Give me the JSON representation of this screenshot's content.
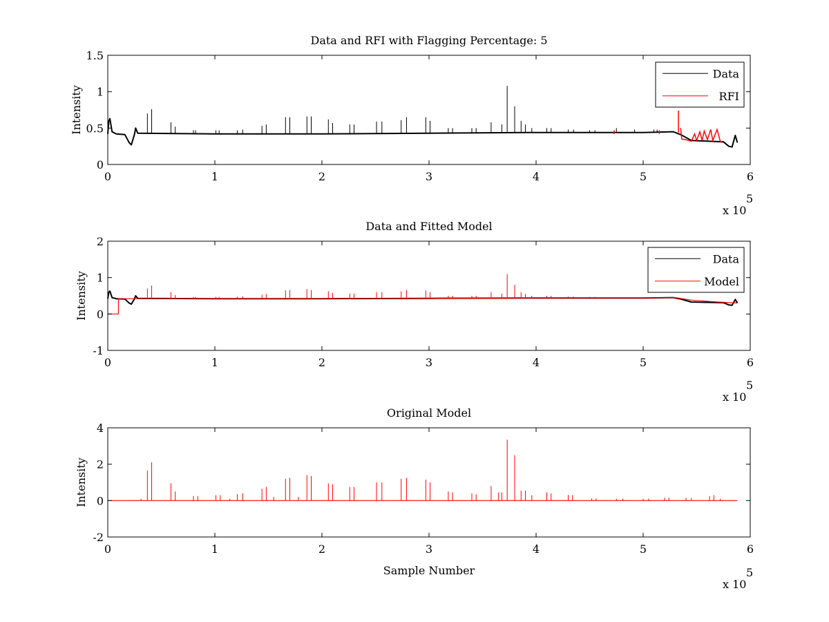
{
  "colors": {
    "data": "#000000",
    "red": "#ff0000",
    "axes": "#000000",
    "background": "#ffffff"
  },
  "chart_data": [
    {
      "type": "line",
      "title": "Data and RFI with Flagging Percentage: 5",
      "xlabel": "",
      "ylabel": "Intensity",
      "xlim": [
        0,
        600000
      ],
      "ylim": [
        0,
        1.5
      ],
      "xticks": [
        0,
        1,
        2,
        3,
        4,
        5,
        6
      ],
      "yticks": [
        0,
        0.5,
        1,
        1.5
      ],
      "x_tick_labels": [
        "0",
        "1",
        "2",
        "3",
        "4",
        "5",
        "6"
      ],
      "y_tick_labels": [
        "0",
        "0.5",
        "1",
        "1.5"
      ],
      "x_multiplier": "x 10",
      "x_multiplier_exponent": "5",
      "legend_position": "top-right",
      "series": [
        {
          "name": "Data",
          "color": "#000000",
          "baseline": [
            [
              0,
              0.42
            ],
            [
              1000,
              0.6
            ],
            [
              2000,
              0.63
            ],
            [
              4000,
              0.45
            ],
            [
              8000,
              0.42
            ],
            [
              16000,
              0.41
            ],
            [
              20000,
              0.3
            ],
            [
              22000,
              0.27
            ],
            [
              25000,
              0.42
            ],
            [
              26000,
              0.5
            ],
            [
              28000,
              0.43
            ],
            [
              100000,
              0.42
            ],
            [
              200000,
              0.42
            ],
            [
              300000,
              0.43
            ],
            [
              400000,
              0.44
            ],
            [
              500000,
              0.44
            ],
            [
              528000,
              0.45
            ],
            [
              535000,
              0.41
            ],
            [
              545000,
              0.33
            ],
            [
              560000,
              0.32
            ],
            [
              575000,
              0.31
            ],
            [
              580000,
              0.25
            ],
            [
              583000,
              0.24
            ],
            [
              586000,
              0.4
            ],
            [
              588000,
              0.3
            ]
          ],
          "spikes": [
            [
              37000,
              0.7
            ],
            [
              41000,
              0.76
            ],
            [
              59000,
              0.58
            ],
            [
              63000,
              0.52
            ],
            [
              80000,
              0.47
            ],
            [
              82000,
              0.47
            ],
            [
              101000,
              0.47
            ],
            [
              104000,
              0.47
            ],
            [
              121000,
              0.47
            ],
            [
              126000,
              0.48
            ],
            [
              144000,
              0.53
            ],
            [
              148000,
              0.55
            ],
            [
              166000,
              0.65
            ],
            [
              170000,
              0.65
            ],
            [
              186000,
              0.66
            ],
            [
              190000,
              0.66
            ],
            [
              206000,
              0.62
            ],
            [
              210000,
              0.57
            ],
            [
              226000,
              0.55
            ],
            [
              230000,
              0.55
            ],
            [
              251000,
              0.59
            ],
            [
              256000,
              0.59
            ],
            [
              274000,
              0.61
            ],
            [
              279000,
              0.65
            ],
            [
              297000,
              0.65
            ],
            [
              301000,
              0.6
            ],
            [
              318000,
              0.5
            ],
            [
              322000,
              0.5
            ],
            [
              340000,
              0.5
            ],
            [
              344000,
              0.5
            ],
            [
              358000,
              0.58
            ],
            [
              368000,
              0.55
            ],
            [
              373000,
              1.08
            ],
            [
              380000,
              0.8
            ],
            [
              386000,
              0.6
            ],
            [
              390000,
              0.55
            ],
            [
              396000,
              0.5
            ],
            [
              410000,
              0.5
            ],
            [
              414000,
              0.5
            ],
            [
              430000,
              0.48
            ],
            [
              435000,
              0.48
            ],
            [
              450000,
              0.47
            ],
            [
              455000,
              0.47
            ],
            [
              475000,
              0.5
            ],
            [
              492000,
              0.48
            ],
            [
              510000,
              0.48
            ],
            [
              513000,
              0.48
            ]
          ]
        },
        {
          "name": "RFI",
          "color": "#ff0000",
          "segments": [
            [
              [
                473000,
                0.42
              ],
              [
                473000,
                0.47
              ]
            ],
            [
              [
                515000,
                0.42
              ],
              [
                515000,
                0.47
              ]
            ],
            [
              [
                533000,
                0.44
              ],
              [
                533000,
                0.74
              ]
            ],
            [
              [
                535000,
                0.5
              ],
              [
                536000,
                0.35
              ],
              [
                540000,
                0.34
              ],
              [
                545000,
                0.32
              ],
              [
                548000,
                0.42
              ],
              [
                550000,
                0.33
              ],
              [
                553000,
                0.45
              ],
              [
                555000,
                0.33
              ],
              [
                557000,
                0.46
              ],
              [
                560000,
                0.34
              ],
              [
                563000,
                0.48
              ],
              [
                565000,
                0.33
              ],
              [
                569000,
                0.48
              ],
              [
                572000,
                0.32
              ],
              [
                574000,
                0.3
              ]
            ]
          ]
        }
      ]
    },
    {
      "type": "line",
      "title": "Data and Fitted Model",
      "xlabel": "",
      "ylabel": "Intensity",
      "xlim": [
        0,
        600000
      ],
      "ylim": [
        -1,
        2
      ],
      "xticks": [
        0,
        1,
        2,
        3,
        4,
        5,
        6
      ],
      "yticks": [
        -1,
        0,
        1,
        2
      ],
      "x_tick_labels": [
        "0",
        "1",
        "2",
        "3",
        "4",
        "5",
        "6"
      ],
      "y_tick_labels": [
        "-1",
        "0",
        "1",
        "2"
      ],
      "x_multiplier": "x 10",
      "x_multiplier_exponent": "5",
      "legend_position": "top-right",
      "series": [
        {
          "name": "Data",
          "color": "#000000",
          "baseline": [
            [
              0,
              0.42
            ],
            [
              1000,
              0.6
            ],
            [
              2000,
              0.63
            ],
            [
              4000,
              0.45
            ],
            [
              8000,
              0.42
            ],
            [
              16000,
              0.41
            ],
            [
              20000,
              0.3
            ],
            [
              22000,
              0.27
            ],
            [
              25000,
              0.42
            ],
            [
              26000,
              0.5
            ],
            [
              28000,
              0.43
            ],
            [
              100000,
              0.42
            ],
            [
              200000,
              0.42
            ],
            [
              300000,
              0.43
            ],
            [
              400000,
              0.44
            ],
            [
              500000,
              0.44
            ],
            [
              528000,
              0.45
            ],
            [
              535000,
              0.41
            ],
            [
              545000,
              0.33
            ],
            [
              560000,
              0.32
            ],
            [
              575000,
              0.31
            ],
            [
              580000,
              0.25
            ],
            [
              583000,
              0.24
            ],
            [
              586000,
              0.4
            ],
            [
              588000,
              0.3
            ]
          ]
        },
        {
          "name": "Model",
          "color": "#ff0000",
          "baseline": [
            [
              0,
              0.0
            ],
            [
              10000,
              0.0
            ],
            [
              10000,
              0.42
            ],
            [
              100000,
              0.42
            ],
            [
              200000,
              0.42
            ],
            [
              300000,
              0.43
            ],
            [
              400000,
              0.44
            ],
            [
              500000,
              0.44
            ],
            [
              530000,
              0.45
            ],
            [
              545000,
              0.38
            ],
            [
              570000,
              0.33
            ],
            [
              588000,
              0.3
            ]
          ],
          "spikes": [
            [
              37000,
              0.7
            ],
            [
              41000,
              0.78
            ],
            [
              59000,
              0.6
            ],
            [
              63000,
              0.52
            ],
            [
              80000,
              0.47
            ],
            [
              82000,
              0.47
            ],
            [
              101000,
              0.47
            ],
            [
              104000,
              0.47
            ],
            [
              121000,
              0.47
            ],
            [
              126000,
              0.48
            ],
            [
              144000,
              0.53
            ],
            [
              148000,
              0.55
            ],
            [
              166000,
              0.65
            ],
            [
              170000,
              0.66
            ],
            [
              186000,
              0.68
            ],
            [
              190000,
              0.66
            ],
            [
              206000,
              0.62
            ],
            [
              210000,
              0.58
            ],
            [
              226000,
              0.56
            ],
            [
              230000,
              0.56
            ],
            [
              251000,
              0.6
            ],
            [
              256000,
              0.6
            ],
            [
              274000,
              0.62
            ],
            [
              279000,
              0.66
            ],
            [
              297000,
              0.65
            ],
            [
              301000,
              0.6
            ],
            [
              318000,
              0.5
            ],
            [
              322000,
              0.5
            ],
            [
              340000,
              0.5
            ],
            [
              344000,
              0.5
            ],
            [
              358000,
              0.6
            ],
            [
              368000,
              0.56
            ],
            [
              373000,
              1.1
            ],
            [
              380000,
              0.8
            ],
            [
              386000,
              0.6
            ],
            [
              390000,
              0.55
            ],
            [
              396000,
              0.5
            ],
            [
              410000,
              0.5
            ],
            [
              414000,
              0.5
            ],
            [
              430000,
              0.48
            ],
            [
              435000,
              0.48
            ],
            [
              450000,
              0.47
            ],
            [
              455000,
              0.47
            ]
          ]
        }
      ]
    },
    {
      "type": "line",
      "title": "Original Model",
      "xlabel": "Sample Number",
      "ylabel": "Intensity",
      "xlim": [
        0,
        600000
      ],
      "ylim": [
        -2,
        4
      ],
      "xticks": [
        0,
        1,
        2,
        3,
        4,
        5,
        6
      ],
      "yticks": [
        -2,
        0,
        2,
        4
      ],
      "x_tick_labels": [
        "0",
        "1",
        "2",
        "3",
        "4",
        "5",
        "6"
      ],
      "y_tick_labels": [
        "-2",
        "0",
        "2",
        "4"
      ],
      "x_multiplier": "x 10",
      "x_multiplier_exponent": "5",
      "legend_position": "",
      "series": [
        {
          "name": "",
          "color": "#ff0000",
          "baseline": [
            [
              0,
              0.0
            ],
            [
              588000,
              0.0
            ]
          ],
          "spikes": [
            [
              31000,
              0.1
            ],
            [
              37000,
              1.65
            ],
            [
              41000,
              2.1
            ],
            [
              59000,
              0.95
            ],
            [
              63000,
              0.5
            ],
            [
              80000,
              0.25
            ],
            [
              84000,
              0.25
            ],
            [
              101000,
              0.3
            ],
            [
              105000,
              0.3
            ],
            [
              114000,
              0.1
            ],
            [
              121000,
              0.35
            ],
            [
              126000,
              0.4
            ],
            [
              144000,
              0.65
            ],
            [
              148000,
              0.75
            ],
            [
              155000,
              0.2
            ],
            [
              166000,
              1.2
            ],
            [
              170000,
              1.25
            ],
            [
              178000,
              0.2
            ],
            [
              186000,
              1.4
            ],
            [
              190000,
              1.35
            ],
            [
              206000,
              0.95
            ],
            [
              210000,
              0.9
            ],
            [
              226000,
              0.75
            ],
            [
              230000,
              0.75
            ],
            [
              251000,
              1.0
            ],
            [
              256000,
              1.0
            ],
            [
              274000,
              1.2
            ],
            [
              279000,
              1.25
            ],
            [
              297000,
              1.15
            ],
            [
              301000,
              1.0
            ],
            [
              318000,
              0.5
            ],
            [
              322000,
              0.45
            ],
            [
              340000,
              0.4
            ],
            [
              344000,
              0.35
            ],
            [
              358000,
              0.8
            ],
            [
              365000,
              0.45
            ],
            [
              368000,
              0.45
            ],
            [
              373000,
              3.35
            ],
            [
              380000,
              2.5
            ],
            [
              386000,
              0.55
            ],
            [
              390000,
              0.55
            ],
            [
              396000,
              0.3
            ],
            [
              410000,
              0.45
            ],
            [
              414000,
              0.4
            ],
            [
              430000,
              0.3
            ],
            [
              434000,
              0.3
            ],
            [
              452000,
              0.12
            ],
            [
              456000,
              0.12
            ],
            [
              475000,
              0.1
            ],
            [
              481000,
              0.1
            ],
            [
              500000,
              0.1
            ],
            [
              505000,
              0.1
            ],
            [
              520000,
              0.15
            ],
            [
              524000,
              0.15
            ],
            [
              540000,
              0.15
            ],
            [
              545000,
              0.15
            ],
            [
              562000,
              0.25
            ],
            [
              566000,
              0.3
            ],
            [
              572000,
              0.1
            ]
          ]
        }
      ]
    }
  ]
}
